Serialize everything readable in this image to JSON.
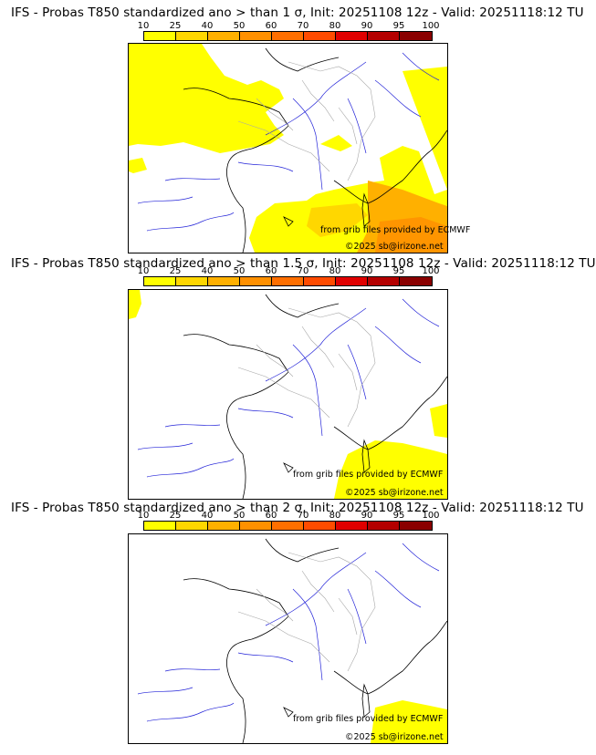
{
  "scale_labels": [
    "10",
    "25",
    "40",
    "50",
    "60",
    "70",
    "80",
    "90",
    "95",
    "100"
  ],
  "scale_colors": [
    "#ffff00",
    "#ffd700",
    "#ffb000",
    "#ff9000",
    "#ff6f00",
    "#ff4b00",
    "#e00000",
    "#b40000",
    "#8a0000",
    "#5a0000"
  ],
  "panels": [
    {
      "title": "IFS - Probas T850  standardized ano > than 1 σ, Init: 20251108 12z - Valid: 20251118:12 TU",
      "credit": "from grib files provided by ECMWF",
      "copyright": "©2025 sb@irizone.net"
    },
    {
      "title": "IFS - Probas T850  standardized ano > than 1.5 σ, Init: 20251108 12z - Valid: 20251118:12 TU",
      "credit": "from grib files provided by ECMWF",
      "copyright": "©2025 sb@irizone.net"
    },
    {
      "title": "IFS - Probas T850  standardized ano > than 2 σ, Init: 20251108 12z - Valid: 20251118:12 TU",
      "credit": "from grib files provided by ECMWF",
      "copyright": "©2025 sb@irizone.net"
    }
  ],
  "colors": {
    "coast": "#000000",
    "rivers": "#2323d8",
    "borders": "#a8a8a8"
  }
}
